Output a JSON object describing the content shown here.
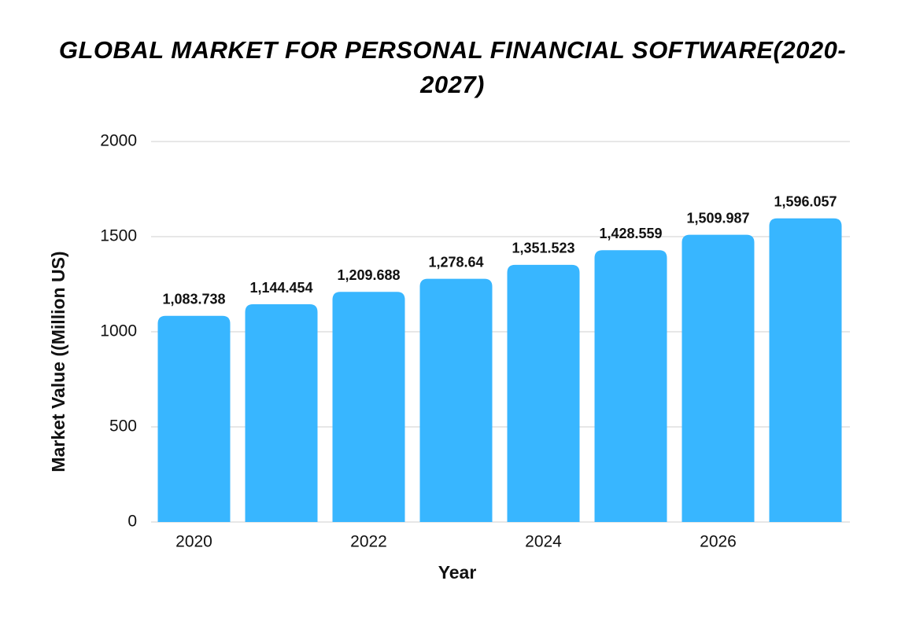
{
  "chart_data": {
    "type": "bar",
    "title": "GLOBAL MARKET FOR PERSONAL FINANCIAL SOFTWARE(2020-2027)",
    "x_label": "Year",
    "y_label": "Market Value ((Million US)",
    "categories": [
      "2020",
      null,
      "2022",
      null,
      "2024",
      null,
      "2026",
      null
    ],
    "values": [
      1083.738,
      1144.454,
      1209.688,
      1278.64,
      1351.523,
      1428.559,
      1509.987,
      1596.057
    ],
    "value_labels": [
      "1,083.738",
      "1,144.454",
      "1,209.688",
      "1,278.64",
      "1,351.523",
      "1,428.559",
      "1,509.987",
      "1,596.057"
    ],
    "color": "#38b6ff",
    "ylim": [
      0,
      2000
    ],
    "yticks": [
      0,
      500,
      1000,
      1500,
      2000
    ],
    "grid": true
  }
}
